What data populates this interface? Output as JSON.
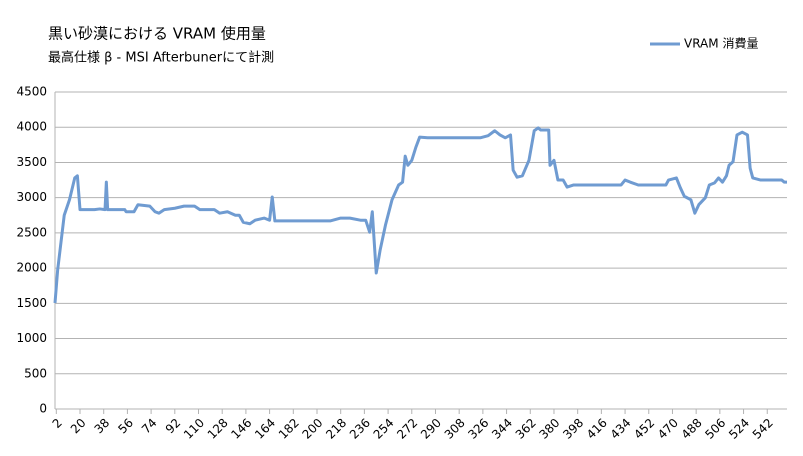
{
  "chart_data": {
    "type": "line",
    "title": "黒い砂漠における VRAM 使用量",
    "subtitle": "最高仕様 β - MSI Afterbunerにて計測",
    "x": [
      1,
      3,
      8,
      12,
      16,
      18,
      20,
      21,
      31,
      35,
      39,
      40,
      41,
      54,
      55,
      61,
      64,
      73,
      77,
      80,
      84,
      92,
      99,
      107,
      111,
      122,
      126,
      132,
      138,
      141,
      144,
      149,
      153,
      160,
      164,
      166,
      168,
      187,
      210,
      218,
      225,
      233,
      237,
      240,
      242,
      245,
      248,
      252,
      257,
      262,
      265,
      267,
      269,
      272,
      275,
      278,
      284,
      297,
      324,
      330,
      335,
      339,
      343,
      347,
      349,
      352,
      356,
      361,
      365,
      368,
      370,
      376,
      377,
      380,
      383,
      387,
      390,
      395,
      400,
      431,
      434,
      438,
      444,
      465,
      467,
      473,
      476,
      479,
      484,
      487,
      490,
      495,
      498,
      502,
      505,
      508,
      511,
      513,
      516,
      519,
      523,
      527,
      529,
      531,
      537,
      553,
      555,
      557
    ],
    "series": [
      {
        "name": "VRAM 消費量",
        "color": "#6f9bd1",
        "values": [
          1505,
          1970,
          2750,
          2970,
          3280,
          3310,
          2830,
          2830,
          2830,
          2840,
          2830,
          3220,
          2830,
          2830,
          2800,
          2800,
          2900,
          2880,
          2800,
          2780,
          2830,
          2850,
          2880,
          2880,
          2830,
          2830,
          2780,
          2800,
          2750,
          2750,
          2650,
          2630,
          2680,
          2710,
          2680,
          3010,
          2670,
          2670,
          2670,
          2710,
          2710,
          2680,
          2680,
          2510,
          2800,
          1930,
          2260,
          2610,
          2970,
          3180,
          3220,
          3590,
          3460,
          3530,
          3710,
          3860,
          3850,
          3850,
          3850,
          3880,
          3950,
          3890,
          3850,
          3890,
          3390,
          3290,
          3310,
          3530,
          3950,
          3990,
          3960,
          3960,
          3460,
          3530,
          3250,
          3250,
          3150,
          3180,
          3180,
          3180,
          3250,
          3220,
          3180,
          3180,
          3250,
          3280,
          3140,
          3020,
          2970,
          2780,
          2900,
          3000,
          3180,
          3210,
          3280,
          3220,
          3310,
          3460,
          3510,
          3890,
          3930,
          3890,
          3420,
          3280,
          3250,
          3250,
          3220,
          3220
        ]
      }
    ],
    "xlim": [
      1,
      557
    ],
    "xticks": [
      2,
      20,
      38,
      56,
      74,
      92,
      110,
      128,
      146,
      164,
      182,
      200,
      218,
      236,
      254,
      272,
      290,
      308,
      326,
      344,
      362,
      380,
      398,
      416,
      434,
      452,
      470,
      488,
      506,
      524,
      542
    ],
    "ylim": [
      0,
      4500
    ],
    "yticks": [
      0,
      500,
      1000,
      1500,
      2000,
      2500,
      3000,
      3500,
      4000,
      4500
    ],
    "grid": true,
    "legend": "top-right"
  }
}
